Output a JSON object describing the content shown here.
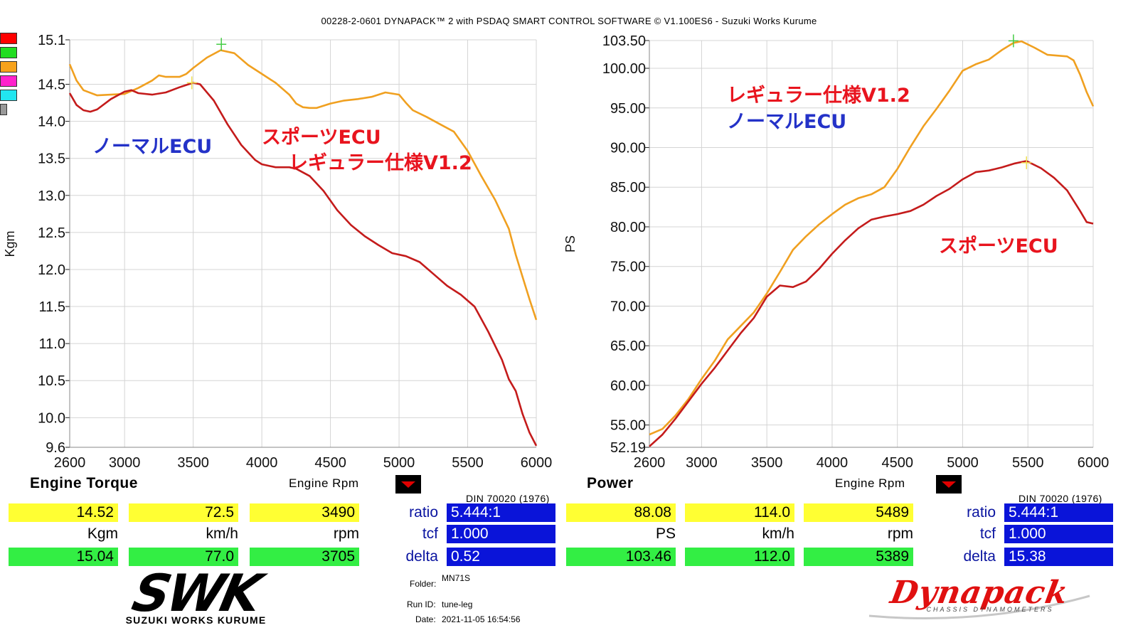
{
  "title": "00228-2-0601 DYNAPACK™ 2 with PSDAQ SMART CONTROL SOFTWARE © V1.100ES6 - Suzuki Works Kurume",
  "colors": {
    "sport": "#f0a020",
    "normal": "#c41b1b",
    "annot_sport": "#e8141e",
    "annot_normal": "#2432c8",
    "swatches": [
      "#ff0000",
      "#22dd22",
      "#f7a21b",
      "#ff22cc",
      "#22e6f0"
    ]
  },
  "chart_data": [
    {
      "type": "line",
      "name": "torque",
      "xlabel": "Engine Rpm",
      "ylabel": "Kgm",
      "xlim": [
        2600,
        6000
      ],
      "ylim": [
        9.6,
        15.1
      ],
      "x_ticks": [
        2600,
        3000,
        3500,
        4000,
        4500,
        5000,
        5500,
        6000
      ],
      "y_ticks": [
        "15.1",
        "14.5",
        "14.0",
        "13.5",
        "13.0",
        "12.5",
        "12.0",
        "11.5",
        "11.0",
        "10.5",
        "10.0",
        "9.6"
      ],
      "y_tick_values": [
        15.1,
        14.5,
        14.0,
        13.5,
        13.0,
        12.5,
        12.0,
        11.5,
        11.0,
        10.5,
        10.0,
        9.6
      ],
      "grid": true,
      "series": [
        {
          "key": "sport",
          "points": [
            [
              2600,
              14.77
            ],
            [
              2650,
              14.55
            ],
            [
              2700,
              14.42
            ],
            [
              2800,
              14.35
            ],
            [
              2900,
              14.36
            ],
            [
              3000,
              14.37
            ],
            [
              3100,
              14.45
            ],
            [
              3200,
              14.55
            ],
            [
              3250,
              14.62
            ],
            [
              3300,
              14.6
            ],
            [
              3400,
              14.6
            ],
            [
              3450,
              14.64
            ],
            [
              3500,
              14.72
            ],
            [
              3600,
              14.86
            ],
            [
              3700,
              14.96
            ],
            [
              3800,
              14.92
            ],
            [
              3900,
              14.76
            ],
            [
              4000,
              14.64
            ],
            [
              4100,
              14.52
            ],
            [
              4200,
              14.36
            ],
            [
              4250,
              14.24
            ],
            [
              4300,
              14.19
            ],
            [
              4350,
              14.18
            ],
            [
              4400,
              14.18
            ],
            [
              4500,
              14.24
            ],
            [
              4600,
              14.28
            ],
            [
              4700,
              14.3
            ],
            [
              4800,
              14.33
            ],
            [
              4900,
              14.39
            ],
            [
              5000,
              14.36
            ],
            [
              5050,
              14.25
            ],
            [
              5100,
              14.15
            ],
            [
              5200,
              14.06
            ],
            [
              5300,
              13.96
            ],
            [
              5400,
              13.86
            ],
            [
              5500,
              13.6
            ],
            [
              5600,
              13.26
            ],
            [
              5700,
              12.94
            ],
            [
              5800,
              12.55
            ],
            [
              5850,
              12.2
            ],
            [
              5900,
              11.9
            ],
            [
              5950,
              11.6
            ],
            [
              6000,
              11.32
            ]
          ]
        },
        {
          "key": "normal",
          "points": [
            [
              2600,
              14.38
            ],
            [
              2650,
              14.22
            ],
            [
              2700,
              14.15
            ],
            [
              2750,
              14.13
            ],
            [
              2800,
              14.16
            ],
            [
              2900,
              14.3
            ],
            [
              3000,
              14.4
            ],
            [
              3050,
              14.42
            ],
            [
              3100,
              14.38
            ],
            [
              3200,
              14.36
            ],
            [
              3300,
              14.39
            ],
            [
              3400,
              14.46
            ],
            [
              3500,
              14.52
            ],
            [
              3550,
              14.5
            ],
            [
              3650,
              14.28
            ],
            [
              3750,
              13.96
            ],
            [
              3850,
              13.68
            ],
            [
              3950,
              13.48
            ],
            [
              4000,
              13.42
            ],
            [
              4100,
              13.38
            ],
            [
              4200,
              13.38
            ],
            [
              4250,
              13.36
            ],
            [
              4350,
              13.26
            ],
            [
              4450,
              13.06
            ],
            [
              4550,
              12.8
            ],
            [
              4650,
              12.6
            ],
            [
              4750,
              12.45
            ],
            [
              4850,
              12.33
            ],
            [
              4950,
              12.22
            ],
            [
              5050,
              12.18
            ],
            [
              5150,
              12.1
            ],
            [
              5250,
              11.94
            ],
            [
              5350,
              11.78
            ],
            [
              5450,
              11.66
            ],
            [
              5550,
              11.5
            ],
            [
              5650,
              11.16
            ],
            [
              5750,
              10.78
            ],
            [
              5800,
              10.52
            ],
            [
              5850,
              10.36
            ],
            [
              5900,
              10.05
            ],
            [
              5950,
              9.8
            ],
            [
              6000,
              9.62
            ]
          ]
        }
      ],
      "markers": [
        {
          "series": "sport",
          "x": 3705,
          "y": 15.04
        },
        {
          "series": "normal",
          "x": 3490,
          "y": 14.52
        }
      ],
      "annotations": [
        {
          "series": "normal",
          "text": "ノーマルECU"
        },
        {
          "series": "sport",
          "text": "スポーツECU"
        },
        {
          "series": "sport",
          "text": "レギュラー仕様V1.2"
        }
      ]
    },
    {
      "type": "line",
      "name": "power",
      "xlabel": "Engine Rpm",
      "ylabel": "PS",
      "xlim": [
        2600,
        6000
      ],
      "ylim": [
        52.19,
        103.5
      ],
      "x_ticks": [
        2600,
        3000,
        3500,
        4000,
        4500,
        5000,
        5500,
        6000
      ],
      "y_ticks": [
        "103.50",
        "100.00",
        "95.00",
        "90.00",
        "85.00",
        "80.00",
        "75.00",
        "70.00",
        "65.00",
        "60.00",
        "55.00",
        "52.19"
      ],
      "y_tick_values": [
        103.5,
        100.0,
        95.0,
        90.0,
        85.0,
        80.0,
        75.0,
        70.0,
        65.0,
        60.0,
        55.0,
        52.19
      ],
      "grid": true,
      "series": [
        {
          "key": "sport",
          "points": [
            [
              2600,
              53.8
            ],
            [
              2700,
              54.5
            ],
            [
              2800,
              56.2
            ],
            [
              2900,
              58.3
            ],
            [
              3000,
              60.8
            ],
            [
              3100,
              63.1
            ],
            [
              3200,
              65.8
            ],
            [
              3300,
              67.5
            ],
            [
              3400,
              69.2
            ],
            [
              3500,
              71.6
            ],
            [
              3600,
              74.3
            ],
            [
              3700,
              77.1
            ],
            [
              3800,
              78.8
            ],
            [
              3900,
              80.3
            ],
            [
              4000,
              81.6
            ],
            [
              4100,
              82.8
            ],
            [
              4200,
              83.6
            ],
            [
              4300,
              84.1
            ],
            [
              4400,
              85.0
            ],
            [
              4500,
              87.3
            ],
            [
              4600,
              90.1
            ],
            [
              4700,
              92.7
            ],
            [
              4800,
              94.9
            ],
            [
              4900,
              97.2
            ],
            [
              5000,
              99.7
            ],
            [
              5100,
              100.5
            ],
            [
              5200,
              101.1
            ],
            [
              5300,
              102.3
            ],
            [
              5389,
              103.2
            ],
            [
              5450,
              103.4
            ],
            [
              5550,
              102.6
            ],
            [
              5650,
              101.7
            ],
            [
              5800,
              101.5
            ],
            [
              5850,
              101.0
            ],
            [
              5900,
              99.2
            ],
            [
              5950,
              97.0
            ],
            [
              6000,
              95.2
            ]
          ]
        },
        {
          "key": "normal",
          "points": [
            [
              2600,
              52.3
            ],
            [
              2700,
              53.8
            ],
            [
              2800,
              55.8
            ],
            [
              2900,
              58.0
            ],
            [
              3000,
              60.2
            ],
            [
              3100,
              62.2
            ],
            [
              3200,
              64.4
            ],
            [
              3300,
              66.6
            ],
            [
              3400,
              68.5
            ],
            [
              3500,
              71.2
            ],
            [
              3600,
              72.6
            ],
            [
              3700,
              72.4
            ],
            [
              3800,
              73.1
            ],
            [
              3900,
              74.7
            ],
            [
              4000,
              76.6
            ],
            [
              4100,
              78.3
            ],
            [
              4200,
              79.8
            ],
            [
              4300,
              80.9
            ],
            [
              4400,
              81.3
            ],
            [
              4500,
              81.6
            ],
            [
              4600,
              82.0
            ],
            [
              4700,
              82.8
            ],
            [
              4800,
              83.9
            ],
            [
              4900,
              84.8
            ],
            [
              5000,
              86.0
            ],
            [
              5100,
              86.9
            ],
            [
              5200,
              87.1
            ],
            [
              5300,
              87.5
            ],
            [
              5400,
              88.0
            ],
            [
              5489,
              88.3
            ],
            [
              5600,
              87.4
            ],
            [
              5700,
              86.2
            ],
            [
              5800,
              84.6
            ],
            [
              5900,
              82.0
            ],
            [
              5950,
              80.6
            ],
            [
              6000,
              80.4
            ]
          ]
        }
      ],
      "markers": [
        {
          "series": "sport",
          "x": 5389,
          "y": 103.46
        },
        {
          "series": "normal",
          "x": 5489,
          "y": 88.08
        }
      ],
      "annotations": [
        {
          "series": "sport",
          "text": "スポーツECU"
        },
        {
          "series": "sport",
          "text": "レギュラー仕様V1.2"
        },
        {
          "series": "normal",
          "text": "ノーマルECU"
        }
      ]
    }
  ],
  "torque_panel": {
    "label": "Engine Torque",
    "axis": "Engine Rpm",
    "standard": "DIN 70020 (1976)",
    "yellow": [
      "14.52",
      "72.5",
      "3490"
    ],
    "units": [
      "Kgm",
      "km/h",
      "rpm"
    ],
    "green": [
      "15.04",
      "77.0",
      "3705"
    ],
    "ratio_label": "ratio",
    "ratio": "5.444:1",
    "tcf_label": "tcf",
    "tcf": "1.000",
    "delta_label": "delta",
    "delta": "0.52"
  },
  "power_panel": {
    "label": "Power",
    "axis": "Engine Rpm",
    "standard": "DIN 70020 (1976)",
    "yellow": [
      "88.08",
      "114.0",
      "5489"
    ],
    "units": [
      "PS",
      "km/h",
      "rpm"
    ],
    "green": [
      "103.46",
      "112.0",
      "5389"
    ],
    "ratio_label": "ratio",
    "ratio": "5.444:1",
    "tcf_label": "tcf",
    "tcf": "1.000",
    "delta_label": "delta",
    "delta": "15.38"
  },
  "meta": {
    "folder_label": "Folder:",
    "folder": "MN71S",
    "run_label": "Run ID:",
    "run": "tune-leg",
    "date_label": "Date:",
    "date": "2021-11-05 16:54:56"
  },
  "logos": {
    "swk": "SWK",
    "swk_sub": "SUZUKI WORKS KURUME",
    "dyna": "Dynapack",
    "dyna_sub": "CHASSIS DYNAMOMETERS"
  }
}
